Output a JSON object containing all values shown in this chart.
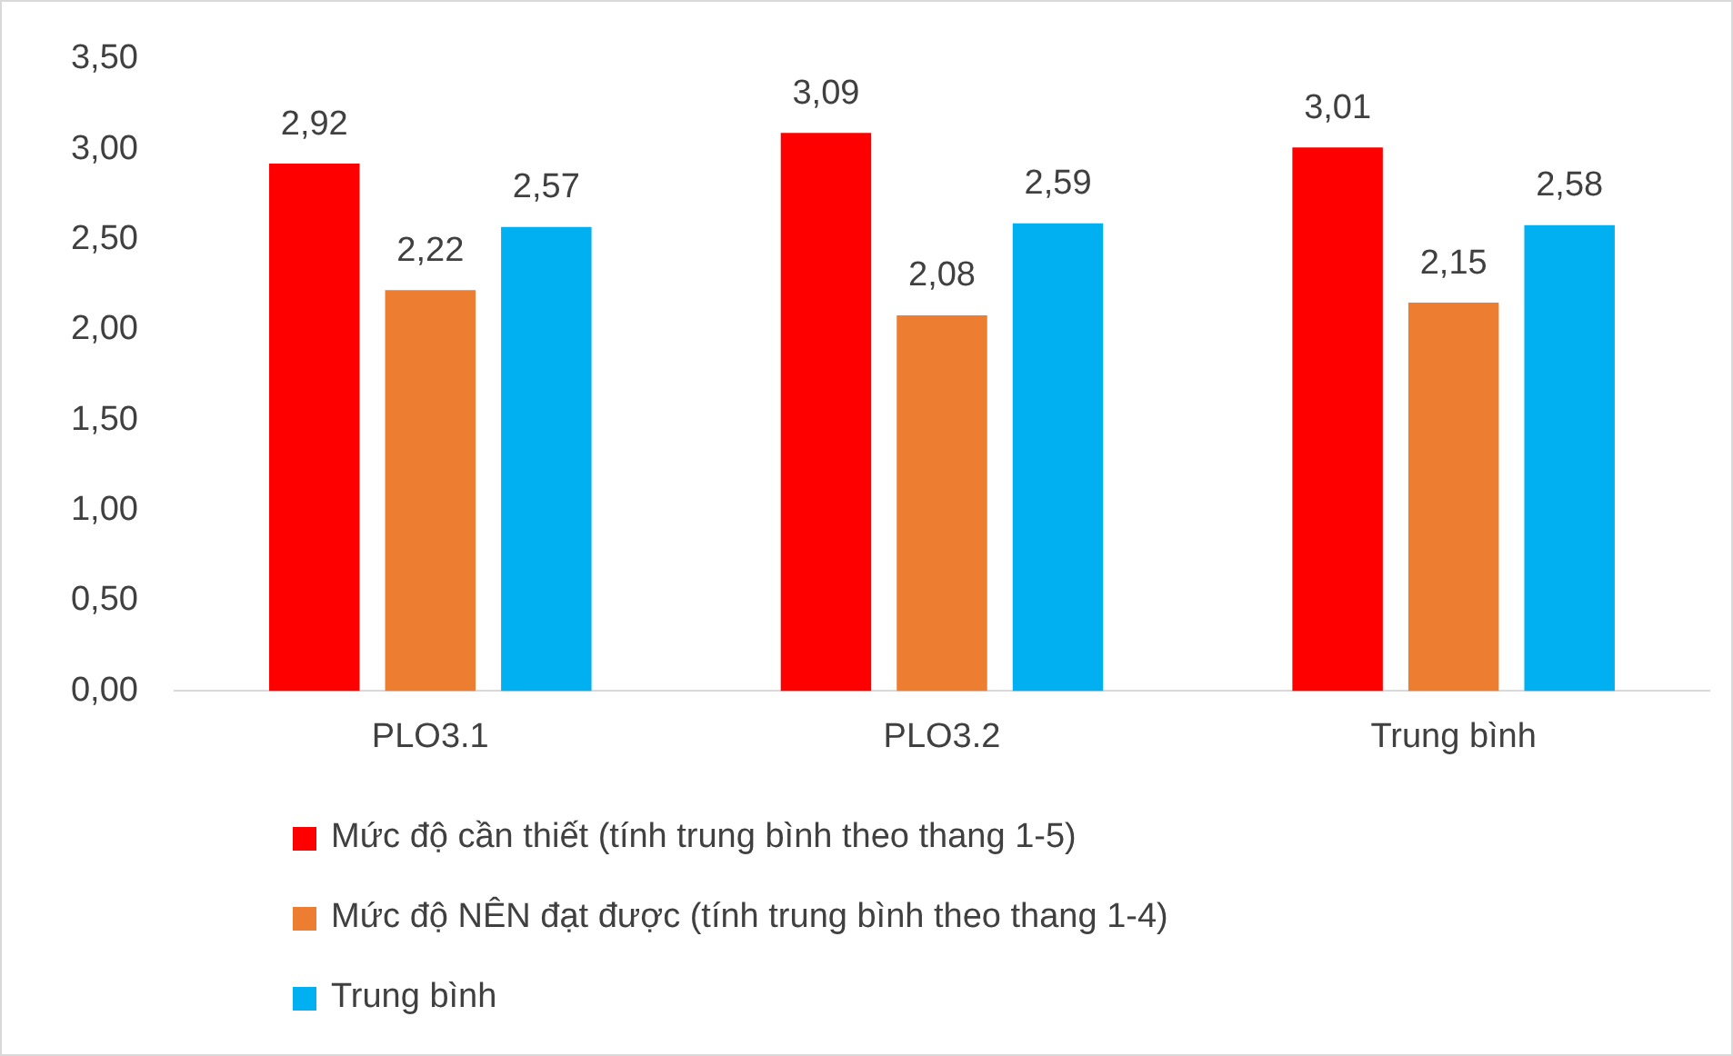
{
  "chart_data": {
    "type": "bar",
    "categories": [
      "PLO3.1",
      "PLO3.2",
      "Trung bình"
    ],
    "series": [
      {
        "name": "Mức độ cần thiết (tính trung bình theo thang 1-5)",
        "color": "#ff0000",
        "values": [
          2.92,
          3.09,
          3.01
        ],
        "value_labels": [
          "2,92",
          "3,09",
          "3,01"
        ]
      },
      {
        "name": "Mức độ NÊN đạt được (tính trung bình theo thang 1-4)",
        "color": "#ed7d31",
        "values": [
          2.22,
          2.08,
          2.15
        ],
        "value_labels": [
          "2,22",
          "2,08",
          "2,15"
        ]
      },
      {
        "name": "Trung bình",
        "color": "#00b0f0",
        "values": [
          2.57,
          2.59,
          2.58
        ],
        "value_labels": [
          "2,57",
          "2,59",
          "2,58"
        ]
      }
    ],
    "ylim": [
      0,
      3.5
    ],
    "yticks": [
      {
        "value": 0,
        "label": "0,00"
      },
      {
        "value": 0.5,
        "label": "0,50"
      },
      {
        "value": 1,
        "label": "1,00"
      },
      {
        "value": 1.5,
        "label": "1,50"
      },
      {
        "value": 2,
        "label": "2,00"
      },
      {
        "value": 2.5,
        "label": "2,50"
      },
      {
        "value": 3,
        "label": "3,00"
      },
      {
        "value": 3.5,
        "label": "3,50"
      }
    ],
    "grid": false,
    "legend": "bottom"
  }
}
